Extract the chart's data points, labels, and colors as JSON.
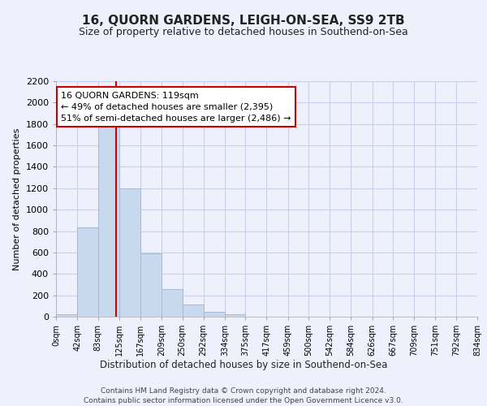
{
  "title": "16, QUORN GARDENS, LEIGH-ON-SEA, SS9 2TB",
  "subtitle": "Size of property relative to detached houses in Southend-on-Sea",
  "xlabel": "Distribution of detached houses by size in Southend-on-Sea",
  "ylabel": "Number of detached properties",
  "bar_edges": [
    0,
    42,
    83,
    125,
    167,
    209,
    250,
    292,
    334,
    375,
    417,
    459,
    500,
    542,
    584,
    626,
    667,
    709,
    751,
    792,
    834
  ],
  "bar_heights": [
    25,
    835,
    1800,
    1200,
    590,
    255,
    115,
    45,
    25,
    0,
    0,
    0,
    0,
    0,
    0,
    0,
    0,
    0,
    0,
    0
  ],
  "tick_labels": [
    "0sqm",
    "42sqm",
    "83sqm",
    "125sqm",
    "167sqm",
    "209sqm",
    "250sqm",
    "292sqm",
    "334sqm",
    "375sqm",
    "417sqm",
    "459sqm",
    "500sqm",
    "542sqm",
    "584sqm",
    "626sqm",
    "667sqm",
    "709sqm",
    "751sqm",
    "792sqm",
    "834sqm"
  ],
  "bar_color": "#c8d9ee",
  "bar_edge_color": "#a0bcd8",
  "vline_x": 119,
  "vline_color": "#cc0000",
  "annotation_line1": "16 QUORN GARDENS: 119sqm",
  "annotation_line2": "← 49% of detached houses are smaller (2,395)",
  "annotation_line3": "51% of semi-detached houses are larger (2,486) →",
  "annotation_box_facecolor": "white",
  "annotation_box_edgecolor": "#cc0000",
  "ylim": [
    0,
    2200
  ],
  "yticks": [
    0,
    200,
    400,
    600,
    800,
    1000,
    1200,
    1400,
    1600,
    1800,
    2000,
    2200
  ],
  "footer_line1": "Contains HM Land Registry data © Crown copyright and database right 2024.",
  "footer_line2": "Contains public sector information licensed under the Open Government Licence v3.0.",
  "bg_color": "#eef1fb",
  "grid_color": "#c8d0e8",
  "title_fontsize": 11,
  "subtitle_fontsize": 9
}
